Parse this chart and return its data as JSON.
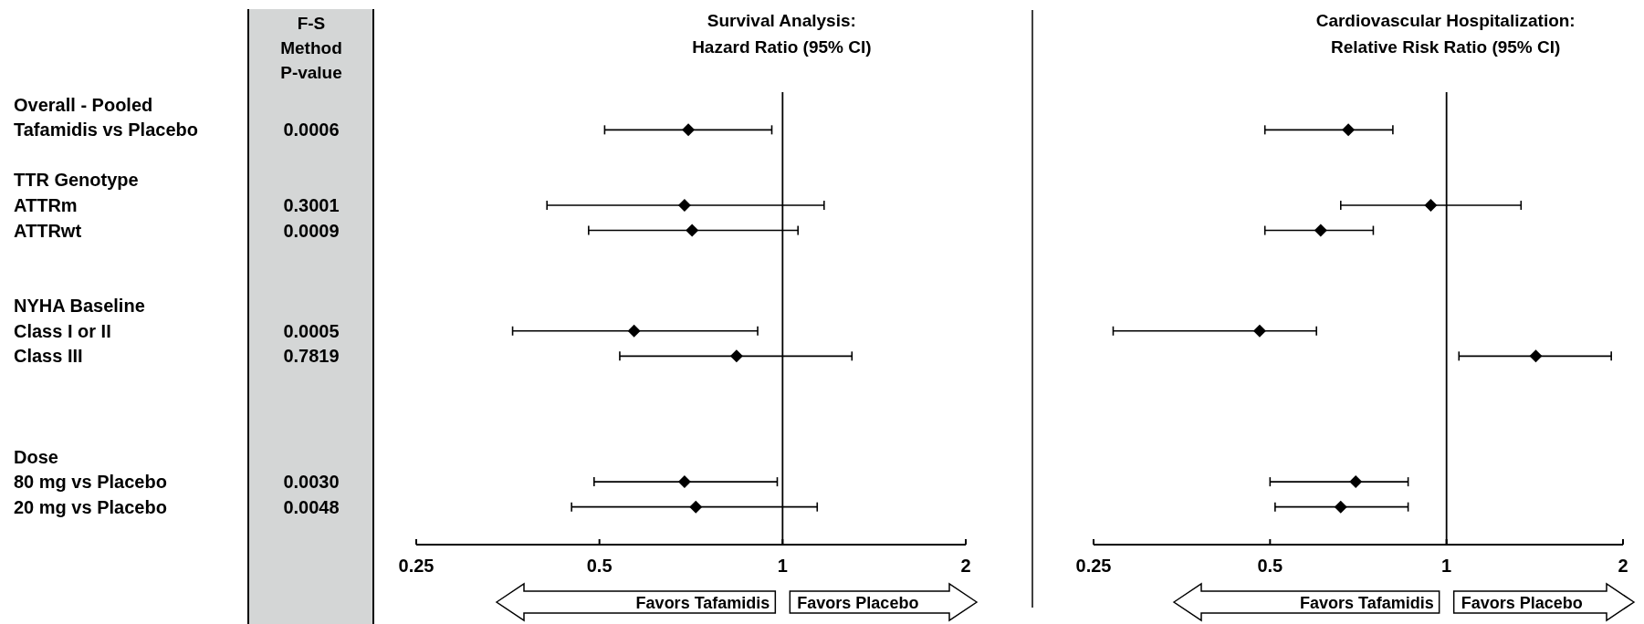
{
  "chart_data": [
    {
      "type": "other",
      "title": "F-S Method P-value",
      "categories": [
        "Overall - Pooled",
        "Tafamidis vs Placebo",
        null,
        "TTR Genotype",
        "ATTRm",
        "ATTRwt",
        null,
        null,
        "NYHA Baseline",
        "Class I or II",
        "Class III",
        null,
        null,
        null,
        "Dose",
        "80 mg vs Placebo",
        "20 mg vs Placebo",
        null
      ],
      "value_labels": [
        null,
        "0.0006",
        null,
        null,
        "0.3001",
        "0.0009",
        null,
        null,
        null,
        "0.0005",
        "0.7819",
        null,
        null,
        null,
        null,
        "0.0030",
        "0.0048",
        null
      ]
    },
    {
      "type": "scatter",
      "orientation": "horizontal",
      "title": "Survival Analysis:",
      "subtitle": "Hazard Ratio (95% CI)",
      "categories": [
        null,
        null,
        null,
        null,
        null,
        null,
        null,
        null,
        null,
        null,
        null,
        null,
        null,
        null,
        null,
        null,
        null,
        null
      ],
      "tick_labels": "x",
      "color": "#000000",
      "marker": "diamond",
      "log": "x",
      "xlim": [
        0.25,
        2
      ],
      "xticks": [
        0.25,
        0.5,
        1,
        2
      ],
      "values": [
        null,
        0.7,
        null,
        null,
        0.69,
        0.71,
        null,
        null,
        null,
        0.57,
        0.84,
        null,
        null,
        null,
        null,
        0.69,
        0.72,
        null
      ],
      "errors": [
        null,
        [
          0.51,
          0.96
        ],
        null,
        null,
        [
          0.41,
          1.17
        ],
        [
          0.48,
          1.06
        ],
        null,
        null,
        null,
        [
          0.36,
          0.91
        ],
        [
          0.54,
          1.3
        ],
        null,
        null,
        null,
        null,
        [
          0.49,
          0.98
        ],
        [
          0.45,
          1.14
        ],
        null
      ],
      "ref_lines": [
        {
          "axis": "x",
          "value": 1
        }
      ],
      "annotations": [
        "Favors Tafamidis",
        "Favors Placebo"
      ]
    },
    {
      "type": "scatter",
      "orientation": "horizontal",
      "title": "Cardiovascular Hospitalization:",
      "subtitle": "Relative Risk Ratio (95% CI)",
      "categories": [
        null,
        null,
        null,
        null,
        null,
        null,
        null,
        null,
        null,
        null,
        null,
        null,
        null,
        null,
        null,
        null,
        null,
        null
      ],
      "tick_labels": "x",
      "color": "#000000",
      "marker": "diamond",
      "log": "x",
      "xlim": [
        0.25,
        2
      ],
      "xticks": [
        0.25,
        0.5,
        1,
        2
      ],
      "values": [
        null,
        0.68,
        null,
        null,
        0.94,
        0.61,
        null,
        null,
        null,
        0.48,
        1.42,
        null,
        null,
        null,
        null,
        0.7,
        0.66,
        null
      ],
      "errors": [
        null,
        [
          0.49,
          0.81
        ],
        null,
        null,
        [
          0.66,
          1.34
        ],
        [
          0.49,
          0.75
        ],
        null,
        null,
        null,
        [
          0.27,
          0.6
        ],
        [
          1.05,
          1.91
        ],
        null,
        null,
        null,
        null,
        [
          0.5,
          0.86
        ],
        [
          0.51,
          0.86
        ],
        null
      ],
      "ref_lines": [
        {
          "axis": "x",
          "value": 1
        }
      ],
      "annotations": [
        "Favors Tafamidis",
        "Favors Placebo"
      ]
    }
  ]
}
